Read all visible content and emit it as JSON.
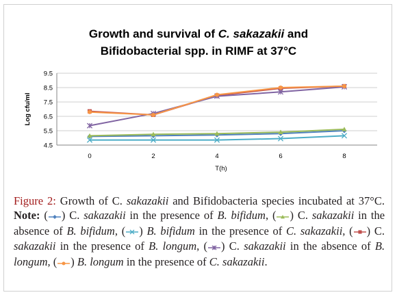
{
  "chart_data": {
    "type": "line",
    "title_line1": "Growth and survival of ",
    "title_italic": "C. sakazakii",
    "title_line1_end": " and",
    "title_line2": "Bifidobacterial spp. in RIMF at 37°C",
    "xlabel": "T(h)",
    "ylabel": "Log cfu/ml",
    "x": [
      0,
      2,
      4,
      6,
      8
    ],
    "x_ticks": [
      "0",
      "2",
      "4",
      "6",
      "8"
    ],
    "ylim": [
      4.5,
      9.5
    ],
    "y_ticks": [
      "4.5",
      "5.5",
      "6.5",
      "7.5",
      "8.5",
      "9.5"
    ],
    "grid": "horizontal",
    "series": [
      {
        "values": [
          5.1,
          5.15,
          5.2,
          5.3,
          5.5
        ],
        "color": "#4f81bd",
        "marker": "diamond"
      },
      {
        "values": [
          5.15,
          5.25,
          5.3,
          5.4,
          5.6
        ],
        "color": "#9bbb59",
        "marker": "triangle"
      },
      {
        "values": [
          4.85,
          4.85,
          4.85,
          4.95,
          5.15
        ],
        "color": "#4bacc6",
        "marker": "x"
      },
      {
        "values": [
          6.85,
          6.6,
          7.95,
          8.45,
          8.6
        ],
        "color": "#c0504d",
        "marker": "square"
      },
      {
        "values": [
          5.85,
          6.7,
          7.9,
          8.2,
          8.55
        ],
        "color": "#8064a2",
        "marker": "cross"
      },
      {
        "values": [
          6.8,
          6.6,
          8.0,
          8.5,
          8.6
        ],
        "color": "#f79646",
        "marker": "circle"
      }
    ]
  },
  "caption": {
    "label": "Figure 2:",
    "text1": "Growth of C.",
    "i1": "sakazakii",
    "text2": "and Bifidobacteria species incubated at 37°C.",
    "note_label": "Note:",
    "open": "(",
    "close": ")",
    "t_cs": "C.",
    "i_sak": "sakazakii",
    "presence_of": "in the presence of",
    "absence_of": "in the absence of",
    "i_bbifidum": "B. bifidum",
    "i_blongum": "B. longum",
    "i_bbifidum_subj": "B. bifidum",
    "i_blongum_subj": "B. longum",
    "i_csak": "C. sakazakii",
    "comma": ",",
    "period": "."
  }
}
